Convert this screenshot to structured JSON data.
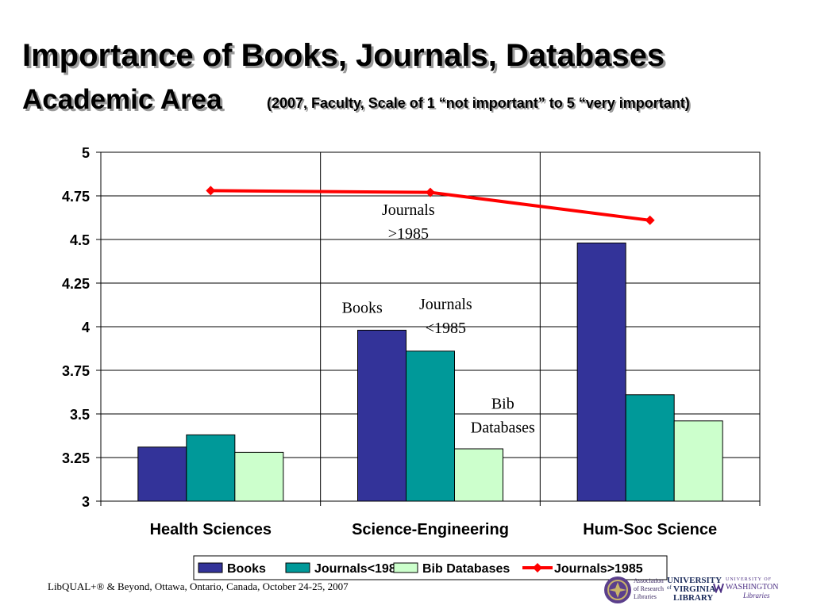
{
  "slide": {
    "title": "Importance of Books, Journals, Databases",
    "subtitle": "Academic Area",
    "subtitle_note": "(2007, Faculty, Scale of 1 “not important” to 5 “very important)",
    "footer": "LibQUAL+® & Beyond, Ottawa, Ontario, Canada, October 24-25, 2007",
    "logos": {
      "arl_line1": "Association",
      "arl_line2": "of Research",
      "arl_line3": "Libraries",
      "uva_line1": "University",
      "uva_line2": "Virginia",
      "uva_line3": "Library",
      "uva_of": "of",
      "uw_top": "UNIVERSITY OF",
      "uw_main": "WASHINGTON",
      "uw_sub": "Libraries"
    }
  },
  "chart_data": {
    "type": "bar",
    "categories": [
      "Health Sciences",
      "Science-Engineering",
      "Hum-Soc Science"
    ],
    "ylim": [
      3,
      5
    ],
    "yticks": [
      3,
      3.25,
      3.5,
      3.75,
      4,
      4.25,
      4.5,
      4.75,
      5
    ],
    "ytick_labels": [
      "3",
      "3.25",
      "3.5",
      "3.75",
      "4",
      "4.25",
      "4.5",
      "4.75",
      "5"
    ],
    "grid": true,
    "legend_position": "bottom",
    "series": [
      {
        "name": "Books",
        "kind": "bar",
        "color": "#333399",
        "values": [
          3.31,
          3.98,
          4.48
        ]
      },
      {
        "name": "Journals<1985",
        "kind": "bar",
        "color": "#009999",
        "values": [
          3.38,
          3.86,
          3.61
        ]
      },
      {
        "name": "Bib Databases",
        "kind": "bar",
        "color": "#ccffcc",
        "values": [
          3.28,
          3.3,
          3.46
        ]
      },
      {
        "name": "Journals>1985",
        "kind": "line",
        "color": "#ff0000",
        "values": [
          4.78,
          4.77,
          4.61
        ]
      }
    ],
    "annotations": [
      {
        "lines": [
          "Journals",
          ">1985"
        ],
        "x_category": 1,
        "x_offset": -0.1,
        "y": 4.64
      },
      {
        "lines": [
          "Books"
        ],
        "x_category": 1,
        "x_offset": -0.31,
        "y": 4.08
      },
      {
        "lines": [
          "Journals",
          "<1985"
        ],
        "x_category": 1,
        "x_offset": 0.07,
        "y": 4.1
      },
      {
        "lines": [
          "Bib",
          "Databases"
        ],
        "x_category": 1,
        "x_offset": 0.33,
        "y": 3.53
      }
    ]
  }
}
